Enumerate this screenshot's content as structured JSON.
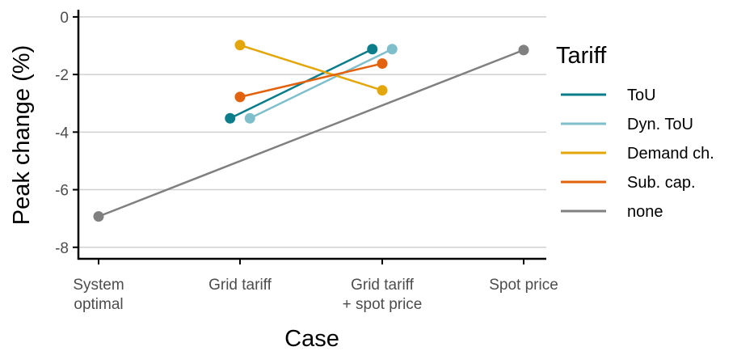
{
  "chart_data": {
    "type": "line",
    "xlabel": "Case",
    "ylabel": "Peak change (%)",
    "categories": [
      [
        "System",
        "optimal"
      ],
      [
        "Grid tariff"
      ],
      [
        "Grid tariff",
        "+ spot price"
      ],
      [
        "Spot price"
      ]
    ],
    "ylim": [
      -8.4,
      0.25
    ],
    "yticks": [
      0,
      -2,
      -4,
      -6,
      -8
    ],
    "grid": "horizontal",
    "legend_title": "Tariff",
    "legend_position": "right",
    "series": [
      {
        "name": "ToU",
        "color": "#0a7c8a",
        "offset": -0.07,
        "points": [
          {
            "x": 1,
            "y": -3.52
          },
          {
            "x": 2,
            "y": -1.12
          }
        ]
      },
      {
        "name": "Dyn. ToU",
        "color": "#7fbfcc",
        "offset": 0.07,
        "points": [
          {
            "x": 1,
            "y": -3.52
          },
          {
            "x": 2,
            "y": -1.12
          }
        ]
      },
      {
        "name": "Demand ch.",
        "color": "#e4a70a",
        "offset": 0.0,
        "points": [
          {
            "x": 1,
            "y": -0.98
          },
          {
            "x": 2,
            "y": -2.55
          }
        ]
      },
      {
        "name": "Sub. cap.",
        "color": "#e3620d",
        "offset": 0.0,
        "points": [
          {
            "x": 1,
            "y": -2.78
          },
          {
            "x": 2,
            "y": -1.62
          }
        ]
      },
      {
        "name": "none",
        "color": "#808080",
        "offset": 0.0,
        "points": [
          {
            "x": 0,
            "y": -6.93
          },
          {
            "x": 3,
            "y": -1.15
          }
        ]
      }
    ]
  }
}
